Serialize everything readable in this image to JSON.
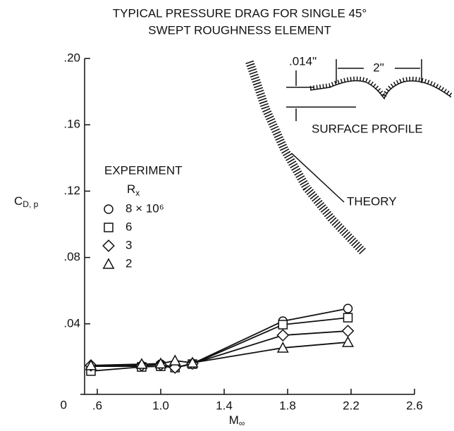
{
  "chart_data": {
    "type": "scatter",
    "title": [
      "TYPICAL PRESSURE DRAG FOR SINGLE 45°",
      "SWEPT ROUGHNESS ELEMENT"
    ],
    "x_label": [
      "M",
      "∞"
    ],
    "y_label": [
      "C",
      "D, p"
    ],
    "xlim": [
      0.52,
      2.6
    ],
    "ylim": [
      0,
      0.2
    ],
    "xticks": [
      {
        "value": 0.6,
        "label": ".6"
      },
      {
        "value": 1.0,
        "label": "1.0"
      },
      {
        "value": 1.4,
        "label": "1.4"
      },
      {
        "value": 1.8,
        "label": "1.8"
      },
      {
        "value": 2.2,
        "label": "2.2"
      },
      {
        "value": 2.6,
        "label": "2.6"
      }
    ],
    "yticks": [
      0,
      {
        "value": 0.04,
        "label": ".04"
      },
      {
        "value": 0.08,
        "label": ".08"
      },
      {
        "value": 0.12,
        "label": ".12"
      },
      {
        "value": 0.16,
        "label": ".16"
      },
      {
        "value": 0.2,
        "label": ".20"
      }
    ],
    "legend_title": "EXPERIMENT",
    "legend_header": [
      "R",
      "x"
    ],
    "series": [
      {
        "name": "8 × 10⁶",
        "marker": "circle",
        "color": "#111111",
        "x": [
          0.56,
          0.88,
          1.0,
          1.09,
          1.2,
          1.77,
          2.18
        ],
        "values": [
          0.0144,
          0.0144,
          0.0157,
          0.0136,
          0.016,
          0.0416,
          0.0492
        ]
      },
      {
        "name": "6",
        "marker": "square",
        "color": "#111111",
        "x": [
          0.56,
          0.88,
          1.0,
          1.09,
          1.2,
          1.77,
          2.18
        ],
        "values": [
          0.0115,
          0.014,
          0.0144,
          0.0136,
          0.0157,
          0.0395,
          0.0437
        ]
      },
      {
        "name": "3",
        "marker": "diamond",
        "color": "#111111",
        "x": [
          0.56,
          0.88,
          1.0,
          1.09,
          1.2,
          1.77,
          2.18
        ],
        "values": [
          0.0149,
          0.0149,
          0.0153,
          0.0136,
          0.016,
          0.0331,
          0.0357
        ]
      },
      {
        "name": "2",
        "marker": "triangle",
        "color": "#111111",
        "x": [
          0.56,
          0.88,
          1.0,
          1.09,
          1.2,
          1.77,
          2.18
        ],
        "values": [
          0.0149,
          0.0157,
          0.016,
          0.0178,
          0.0165,
          0.0255,
          0.0289
        ]
      }
    ],
    "theory": {
      "name": "THEORY",
      "color": "#111111",
      "x": [
        1.56,
        1.66,
        1.78,
        1.92,
        2.08,
        2.28
      ],
      "values": [
        0.198,
        0.17,
        0.145,
        0.122,
        0.103,
        0.083
      ]
    },
    "inset": {
      "height_label": ".014\"",
      "spacing_label": "2\"",
      "caption": "SURFACE PROFILE"
    }
  }
}
